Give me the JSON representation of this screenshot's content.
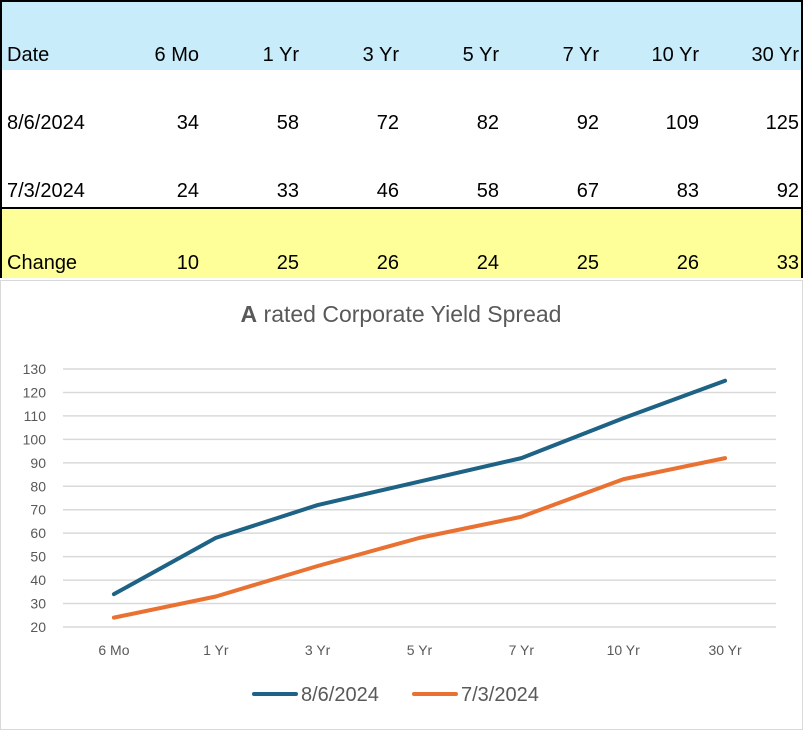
{
  "table": {
    "headers": [
      "Date",
      "6 Mo",
      "1 Yr",
      "3 Yr",
      "5 Yr",
      "7 Yr",
      "10 Yr",
      "30 Yr"
    ],
    "rows": [
      [
        "8/6/2024",
        "34",
        "58",
        "72",
        "82",
        "92",
        "109",
        "125"
      ],
      [
        "7/3/2024",
        "24",
        "33",
        "46",
        "58",
        "67",
        "83",
        "92"
      ],
      [
        "Change",
        "10",
        "25",
        "26",
        "24",
        "25",
        "26",
        "33"
      ]
    ],
    "colors": {
      "header_bg": "#c9ecfa",
      "change_bg": "#ffff99"
    }
  },
  "chart_data": {
    "type": "line",
    "title_bold": "A",
    "title_rest": " rated Corporate Yield Spread",
    "categories": [
      "6 Mo",
      "1 Yr",
      "3 Yr",
      "5 Yr",
      "7 Yr",
      "10 Yr",
      "30 Yr"
    ],
    "series": [
      {
        "name": "8/6/2024",
        "values": [
          34,
          58,
          72,
          82,
          92,
          109,
          125
        ],
        "color": "#1e6285"
      },
      {
        "name": "7/3/2024",
        "values": [
          24,
          33,
          46,
          58,
          67,
          83,
          92
        ],
        "color": "#e97132"
      }
    ],
    "ylim": [
      20,
      130
    ],
    "yticks": [
      "20",
      "30",
      "40",
      "50",
      "60",
      "70",
      "80",
      "90",
      "100",
      "110",
      "120",
      "130"
    ],
    "grid": true,
    "legend": "bottom"
  }
}
